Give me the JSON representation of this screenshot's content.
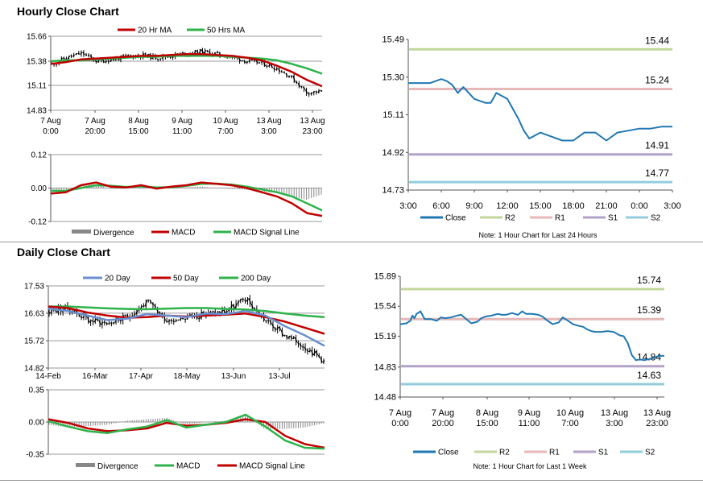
{
  "hourly_title": "Hourly Close Chart",
  "daily_title": "Daily Close Chart",
  "chart_data": [
    {
      "id": "hourly_price",
      "type": "candlestick-line",
      "title": "Hourly Close Chart",
      "yticks": [
        "15.66",
        "15.38",
        "15.11",
        "14.83"
      ],
      "ylim": [
        14.83,
        15.66
      ],
      "xticks": [
        [
          "7 Aug",
          "0:00"
        ],
        [
          "7 Aug",
          "20:00"
        ],
        [
          "8 Aug",
          "15:00"
        ],
        [
          "9 Aug",
          "11:00"
        ],
        [
          "10 Aug",
          "7:00"
        ],
        [
          "13 Aug",
          "3:00"
        ],
        [
          "13 Aug",
          "23:00"
        ]
      ],
      "legend": [
        "20 Hr MA",
        "50 Hrs MA"
      ],
      "colors": {
        "ma20": "#c00000",
        "ma50": "#2db34a",
        "candles": "#000000"
      },
      "ma20": [
        15.35,
        15.37,
        15.4,
        15.41,
        15.42,
        15.43,
        15.44,
        15.44,
        15.45,
        15.46,
        15.46,
        15.45,
        15.44,
        15.42,
        15.39,
        15.33,
        15.26,
        15.17,
        15.1
      ],
      "ma50": [
        15.38,
        15.39,
        15.39,
        15.4,
        15.41,
        15.42,
        15.43,
        15.43,
        15.44,
        15.44,
        15.44,
        15.44,
        15.43,
        15.42,
        15.41,
        15.39,
        15.35,
        15.3,
        15.24
      ],
      "close": [
        15.35,
        15.42,
        15.47,
        15.38,
        15.4,
        15.43,
        15.45,
        15.42,
        15.44,
        15.47,
        15.49,
        15.46,
        15.43,
        15.38,
        15.36,
        15.3,
        15.2,
        15.03,
        15.04
      ]
    },
    {
      "id": "hourly_macd",
      "type": "macd",
      "yticks": [
        "0.12",
        "0.00",
        "-0.12"
      ],
      "ylim": [
        -0.12,
        0.12
      ],
      "legend": [
        "Divergence",
        "MACD",
        "MACD Signal Line"
      ],
      "colors": {
        "divergence": "#888888",
        "macd": "#c00000",
        "signal": "#2db34a"
      },
      "macd": [
        -0.02,
        -0.015,
        0.01,
        0.02,
        0.005,
        0.002,
        0.01,
        -0.002,
        0.005,
        0.01,
        0.02,
        0.015,
        0.01,
        0.0,
        -0.015,
        -0.03,
        -0.055,
        -0.09,
        -0.1
      ],
      "signal": [
        -0.01,
        -0.01,
        0.0,
        0.01,
        0.008,
        0.004,
        0.006,
        0.002,
        0.003,
        0.008,
        0.015,
        0.016,
        0.012,
        0.005,
        -0.005,
        -0.015,
        -0.03,
        -0.055,
        -0.08
      ]
    },
    {
      "id": "hourly_close",
      "type": "line",
      "yticks": [
        "15.49",
        "15.30",
        "15.11",
        "14.92",
        "14.73"
      ],
      "ylim": [
        14.73,
        15.49
      ],
      "xticks": [
        "3:00",
        "6:00",
        "9:00",
        "12:00",
        "15:00",
        "18:00",
        "21:00",
        "0:00",
        "3:00"
      ],
      "levels": [
        {
          "name": "R2",
          "value": 15.44,
          "label": "15.44",
          "color": "#c3d69b"
        },
        {
          "name": "R1",
          "value": 15.24,
          "label": "15.24",
          "color": "#e6b9b8"
        },
        {
          "name": "S1",
          "value": 14.91,
          "label": "14.91",
          "color": "#b3a2c7"
        },
        {
          "name": "S2",
          "value": 14.77,
          "label": "14.77",
          "color": "#93cddd"
        }
      ],
      "close_color": "#1f77b4",
      "x": [
        0,
        1,
        2,
        3,
        3.5,
        4,
        4.5,
        5,
        6,
        7,
        7.5,
        8,
        9,
        10,
        10.5,
        11,
        12,
        13,
        14,
        15,
        16,
        17,
        18,
        19,
        20,
        21,
        22,
        23,
        24
      ],
      "close": [
        15.27,
        15.27,
        15.27,
        15.29,
        15.28,
        15.26,
        15.22,
        15.25,
        15.19,
        15.17,
        15.17,
        15.22,
        15.19,
        15.09,
        15.03,
        14.99,
        15.02,
        15.0,
        14.98,
        14.98,
        15.02,
        15.02,
        14.98,
        15.02,
        15.03,
        15.04,
        15.04,
        15.05,
        15.05
      ],
      "legend": [
        "Close",
        "R2",
        "R1",
        "S1",
        "S2"
      ],
      "note": "Note: 1 Hour Chart for Last 24 Hours"
    },
    {
      "id": "daily_price",
      "type": "candlestick-line",
      "title": "Daily Close Chart",
      "yticks": [
        "17.53",
        "16.63",
        "15.72",
        "14.82"
      ],
      "ylim": [
        14.82,
        17.53
      ],
      "xticks": [
        "14-Feb",
        "16-Mar",
        "17-Apr",
        "18-May",
        "13-Jun",
        "13-Jul"
      ],
      "legend": [
        "20 Day",
        "50 Day",
        "200 Day"
      ],
      "colors": {
        "ma20": "#6a8fd0",
        "ma50": "#c00000",
        "ma200": "#2db34a",
        "candles": "#000000"
      },
      "ma20": [
        16.78,
        16.7,
        16.55,
        16.4,
        16.45,
        16.6,
        16.55,
        16.5,
        16.62,
        16.6,
        16.7,
        16.55,
        16.2,
        15.9,
        15.55
      ],
      "ma50": [
        16.85,
        16.8,
        16.65,
        16.55,
        16.48,
        16.5,
        16.55,
        16.52,
        16.55,
        16.58,
        16.62,
        16.5,
        16.35,
        16.15,
        15.95
      ],
      "ma200": [
        16.85,
        16.85,
        16.82,
        16.79,
        16.77,
        16.76,
        16.78,
        16.8,
        16.8,
        16.77,
        16.75,
        16.7,
        16.62,
        16.55,
        16.5
      ],
      "close": [
        16.7,
        16.8,
        16.4,
        16.3,
        16.5,
        17.0,
        16.4,
        16.5,
        16.6,
        16.7,
        17.1,
        16.4,
        15.9,
        15.55,
        15.05
      ]
    },
    {
      "id": "daily_macd",
      "type": "macd",
      "yticks": [
        "0.35",
        "0.00",
        "-0.35"
      ],
      "ylim": [
        -0.35,
        0.35
      ],
      "legend": [
        "Divergence",
        "MACD",
        "MACD Signal Line"
      ],
      "colors": {
        "divergence": "#888888",
        "macd": "#2db34a",
        "signal": "#c00000"
      },
      "macd": [
        0.01,
        -0.05,
        -0.1,
        -0.12,
        -0.08,
        -0.05,
        0.02,
        -0.06,
        -0.03,
        0.0,
        0.08,
        -0.05,
        -0.2,
        -0.28,
        -0.29
      ],
      "signal": [
        0.03,
        -0.01,
        -0.07,
        -0.1,
        -0.09,
        -0.07,
        -0.01,
        -0.04,
        -0.03,
        -0.01,
        0.03,
        0.0,
        -0.15,
        -0.24,
        -0.28
      ]
    },
    {
      "id": "daily_close",
      "type": "line",
      "yticks": [
        "15.89",
        "15.54",
        "15.19",
        "14.83",
        "14.48"
      ],
      "ylim": [
        14.48,
        15.89
      ],
      "xticks": [
        [
          "7 Aug",
          "0:00"
        ],
        [
          "7 Aug",
          "20:00"
        ],
        [
          "8 Aug",
          "15:00"
        ],
        [
          "9 Aug",
          "11:00"
        ],
        [
          "10 Aug",
          "7:00"
        ],
        [
          "13 Aug",
          "3:00"
        ],
        [
          "13 Aug",
          "23:00"
        ]
      ],
      "levels": [
        {
          "name": "R2",
          "value": 15.74,
          "label": "15.74",
          "color": "#c3d69b"
        },
        {
          "name": "R1",
          "value": 15.39,
          "label": "15.39",
          "color": "#e6b9b8"
        },
        {
          "name": "S1",
          "value": 14.84,
          "label": "14.84",
          "color": "#b3a2c7"
        },
        {
          "name": "S2",
          "value": 14.63,
          "label": "14.63",
          "color": "#93cddd"
        }
      ],
      "close_color": "#1f77b4",
      "x": [
        0,
        3,
        5,
        6,
        7,
        8,
        10,
        12,
        15,
        18,
        20,
        22,
        25,
        28,
        30,
        32,
        35,
        38,
        40,
        42,
        45,
        48,
        50,
        52,
        55,
        58,
        60,
        62,
        65,
        68,
        70,
        72,
        75,
        78,
        80,
        82,
        85,
        88,
        90,
        92,
        94,
        96,
        99,
        102,
        105,
        108,
        110,
        112,
        114,
        116,
        118,
        120,
        122,
        124,
        126,
        128,
        130
      ],
      "close": [
        15.33,
        15.34,
        15.37,
        15.43,
        15.4,
        15.45,
        15.48,
        15.39,
        15.39,
        15.37,
        15.41,
        15.4,
        15.41,
        15.43,
        15.44,
        15.4,
        15.34,
        15.36,
        15.4,
        15.42,
        15.43,
        15.45,
        15.44,
        15.44,
        15.46,
        15.44,
        15.48,
        15.45,
        15.45,
        15.44,
        15.42,
        15.38,
        15.33,
        15.35,
        15.41,
        15.38,
        15.33,
        15.31,
        15.3,
        15.27,
        15.25,
        15.24,
        15.24,
        15.25,
        15.24,
        15.2,
        15.19,
        15.11,
        14.97,
        14.91,
        14.92,
        14.91,
        14.92,
        14.93,
        14.95,
        14.96,
        14.96
      ],
      "legend": [
        "Close",
        "R2",
        "R1",
        "S1",
        "S2"
      ],
      "note": "Note: 1 Hour Chart for Last 1 Week"
    }
  ]
}
